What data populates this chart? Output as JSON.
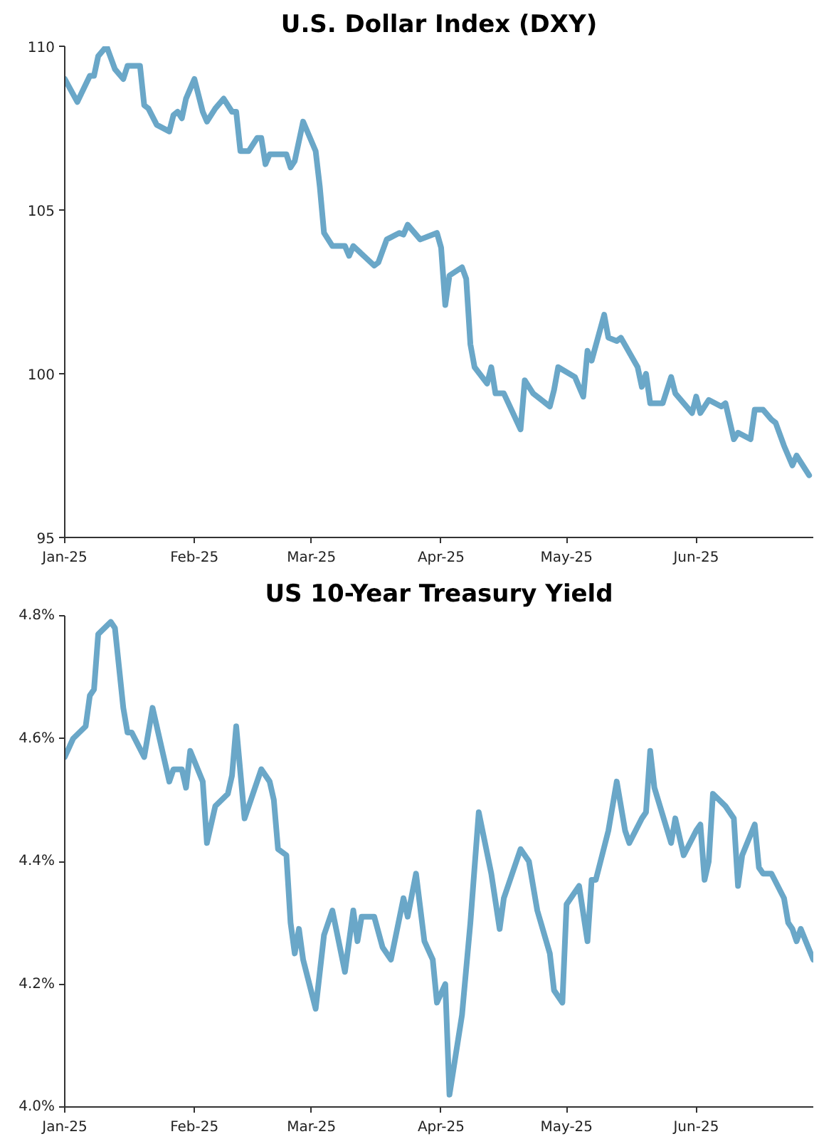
{
  "chart_data": [
    {
      "type": "line",
      "title": "U.S. Dollar Index (DXY)",
      "xlim": [
        "2025-01-01",
        "2025-06-29"
      ],
      "ylim": [
        95,
        110
      ],
      "yticks": [
        95,
        100,
        105,
        110
      ],
      "xticks": [
        {
          "value": "2025-01-01",
          "label": "Jan-25"
        },
        {
          "value": "2025-02-01",
          "label": "Feb-25"
        },
        {
          "value": "2025-03-01",
          "label": "Mar-25"
        },
        {
          "value": "2025-04-01",
          "label": "Apr-25"
        },
        {
          "value": "2025-05-01",
          "label": "May-25"
        },
        {
          "value": "2025-06-01",
          "label": "Jun-25"
        }
      ],
      "grid": false,
      "series": [
        {
          "color": "#6aa7c8",
          "x": [
            "2025-01-01",
            "2025-01-04",
            "2025-01-07",
            "2025-01-08",
            "2025-01-09",
            "2025-01-11",
            "2025-01-13",
            "2025-01-15",
            "2025-01-16",
            "2025-01-19",
            "2025-01-20",
            "2025-01-21",
            "2025-01-23",
            "2025-01-26",
            "2025-01-27",
            "2025-01-28",
            "2025-01-29",
            "2025-01-30",
            "2025-02-01",
            "2025-02-03",
            "2025-02-04",
            "2025-02-06",
            "2025-02-08",
            "2025-02-10",
            "2025-02-11",
            "2025-02-12",
            "2025-02-14",
            "2025-02-16",
            "2025-02-17",
            "2025-02-18",
            "2025-02-19",
            "2025-02-23",
            "2025-02-24",
            "2025-02-25",
            "2025-02-27",
            "2025-03-02",
            "2025-03-03",
            "2025-03-04",
            "2025-03-06",
            "2025-03-09",
            "2025-03-10",
            "2025-03-11",
            "2025-03-16",
            "2025-03-17",
            "2025-03-19",
            "2025-03-22",
            "2025-03-23",
            "2025-03-24",
            "2025-03-27",
            "2025-03-31",
            "2025-04-01",
            "2025-04-02",
            "2025-04-03",
            "2025-04-06",
            "2025-04-07",
            "2025-04-08",
            "2025-04-09",
            "2025-04-12",
            "2025-04-13",
            "2025-04-14",
            "2025-04-16",
            "2025-04-20",
            "2025-04-21",
            "2025-04-23",
            "2025-04-27",
            "2025-04-28",
            "2025-04-29",
            "2025-05-03",
            "2025-05-05",
            "2025-05-06",
            "2025-05-07",
            "2025-05-10",
            "2025-05-11",
            "2025-05-13",
            "2025-05-14",
            "2025-05-18",
            "2025-05-19",
            "2025-05-20",
            "2025-05-21",
            "2025-05-24",
            "2025-05-26",
            "2025-05-27",
            "2025-05-31",
            "2025-06-01",
            "2025-06-02",
            "2025-06-04",
            "2025-06-07",
            "2025-06-08",
            "2025-06-10",
            "2025-06-11",
            "2025-06-14",
            "2025-06-15",
            "2025-06-17",
            "2025-06-19",
            "2025-06-20",
            "2025-06-22",
            "2025-06-24",
            "2025-06-25",
            "2025-06-28"
          ],
          "values": [
            109.0,
            108.3,
            109.1,
            109.1,
            109.7,
            110.0,
            109.3,
            109.0,
            109.4,
            109.4,
            108.2,
            108.1,
            107.6,
            107.4,
            107.9,
            108.0,
            107.8,
            108.4,
            109.0,
            108.0,
            107.7,
            108.1,
            108.4,
            108.0,
            108.0,
            106.8,
            106.8,
            107.2,
            107.2,
            106.4,
            106.7,
            106.7,
            106.3,
            106.5,
            107.7,
            106.8,
            105.7,
            104.3,
            103.9,
            103.9,
            103.6,
            103.9,
            103.3,
            103.4,
            104.1,
            104.3,
            104.25,
            104.55,
            104.1,
            104.3,
            103.85,
            102.1,
            103.0,
            103.25,
            102.9,
            100.9,
            100.2,
            99.7,
            100.2,
            99.4,
            99.4,
            98.3,
            99.8,
            99.4,
            99.0,
            99.5,
            100.2,
            99.9,
            99.3,
            100.7,
            100.4,
            101.8,
            101.1,
            101.0,
            101.1,
            100.2,
            99.6,
            100.0,
            99.1,
            99.1,
            99.9,
            99.4,
            98.8,
            99.3,
            98.8,
            99.2,
            99.0,
            99.1,
            98.0,
            98.2,
            98.0,
            98.9,
            98.9,
            98.6,
            98.5,
            97.8,
            97.2,
            97.5,
            96.9
          ]
        }
      ]
    },
    {
      "type": "line",
      "title": "US 10-Year Treasury Yield",
      "xlim": [
        "2025-01-01",
        "2025-06-29"
      ],
      "ylim": [
        4.0,
        4.8
      ],
      "yticks": [
        {
          "value": 4.0,
          "label": "4.0%"
        },
        {
          "value": 4.2,
          "label": "4.2%"
        },
        {
          "value": 4.4,
          "label": "4.4%"
        },
        {
          "value": 4.6,
          "label": "4.6%"
        },
        {
          "value": 4.8,
          "label": "4.8%"
        }
      ],
      "xticks": [
        {
          "value": "2025-01-01",
          "label": "Jan-25"
        },
        {
          "value": "2025-02-01",
          "label": "Feb-25"
        },
        {
          "value": "2025-03-01",
          "label": "Mar-25"
        },
        {
          "value": "2025-04-01",
          "label": "Apr-25"
        },
        {
          "value": "2025-05-01",
          "label": "May-25"
        },
        {
          "value": "2025-06-01",
          "label": "Jun-25"
        }
      ],
      "grid": false,
      "series": [
        {
          "color": "#6aa7c8",
          "x": [
            "2025-01-01",
            "2025-01-03",
            "2025-01-06",
            "2025-01-07",
            "2025-01-08",
            "2025-01-09",
            "2025-01-12",
            "2025-01-13",
            "2025-01-15",
            "2025-01-16",
            "2025-01-17",
            "2025-01-20",
            "2025-01-22",
            "2025-01-26",
            "2025-01-27",
            "2025-01-29",
            "2025-01-30",
            "2025-01-31",
            "2025-02-03",
            "2025-02-04",
            "2025-02-06",
            "2025-02-09",
            "2025-02-10",
            "2025-02-11",
            "2025-02-13",
            "2025-02-17",
            "2025-02-19",
            "2025-02-20",
            "2025-02-21",
            "2025-02-23",
            "2025-02-24",
            "2025-02-25",
            "2025-02-26",
            "2025-02-27",
            "2025-03-02",
            "2025-03-04",
            "2025-03-06",
            "2025-03-09",
            "2025-03-11",
            "2025-03-12",
            "2025-03-13",
            "2025-03-16",
            "2025-03-18",
            "2025-03-20",
            "2025-03-23",
            "2025-03-24",
            "2025-03-26",
            "2025-03-28",
            "2025-03-30",
            "2025-03-31",
            "2025-04-02",
            "2025-04-03",
            "2025-04-06",
            "2025-04-08",
            "2025-04-10",
            "2025-04-13",
            "2025-04-15",
            "2025-04-16",
            "2025-04-20",
            "2025-04-22",
            "2025-04-24",
            "2025-04-27",
            "2025-04-28",
            "2025-04-30",
            "2025-05-01",
            "2025-05-04",
            "2025-05-06",
            "2025-05-07",
            "2025-05-08",
            "2025-05-11",
            "2025-05-13",
            "2025-05-15",
            "2025-05-16",
            "2025-05-19",
            "2025-05-20",
            "2025-05-21",
            "2025-05-22",
            "2025-05-26",
            "2025-05-27",
            "2025-05-29",
            "2025-06-01",
            "2025-06-02",
            "2025-06-03",
            "2025-06-04",
            "2025-06-05",
            "2025-06-08",
            "2025-06-10",
            "2025-06-11",
            "2025-06-12",
            "2025-06-15",
            "2025-06-16",
            "2025-06-17",
            "2025-06-19",
            "2025-06-22",
            "2025-06-23",
            "2025-06-24",
            "2025-06-25",
            "2025-06-26",
            "2025-06-29"
          ],
          "values": [
            4.57,
            4.6,
            4.62,
            4.67,
            4.68,
            4.77,
            4.79,
            4.78,
            4.65,
            4.61,
            4.61,
            4.57,
            4.65,
            4.53,
            4.55,
            4.55,
            4.52,
            4.58,
            4.53,
            4.43,
            4.49,
            4.51,
            4.54,
            4.62,
            4.47,
            4.55,
            4.53,
            4.5,
            4.42,
            4.41,
            4.3,
            4.25,
            4.29,
            4.24,
            4.16,
            4.28,
            4.32,
            4.22,
            4.32,
            4.27,
            4.31,
            4.31,
            4.26,
            4.24,
            4.34,
            4.31,
            4.38,
            4.27,
            4.24,
            4.17,
            4.2,
            4.02,
            4.15,
            4.3,
            4.48,
            4.38,
            4.29,
            4.34,
            4.42,
            4.4,
            4.32,
            4.25,
            4.19,
            4.17,
            4.33,
            4.36,
            4.27,
            4.37,
            4.37,
            4.45,
            4.53,
            4.45,
            4.43,
            4.47,
            4.48,
            4.58,
            4.52,
            4.43,
            4.47,
            4.41,
            4.45,
            4.46,
            4.37,
            4.4,
            4.51,
            4.49,
            4.47,
            4.36,
            4.41,
            4.46,
            4.39,
            4.38,
            4.38,
            4.34,
            4.3,
            4.29,
            4.27,
            4.29,
            4.24
          ]
        }
      ]
    }
  ]
}
